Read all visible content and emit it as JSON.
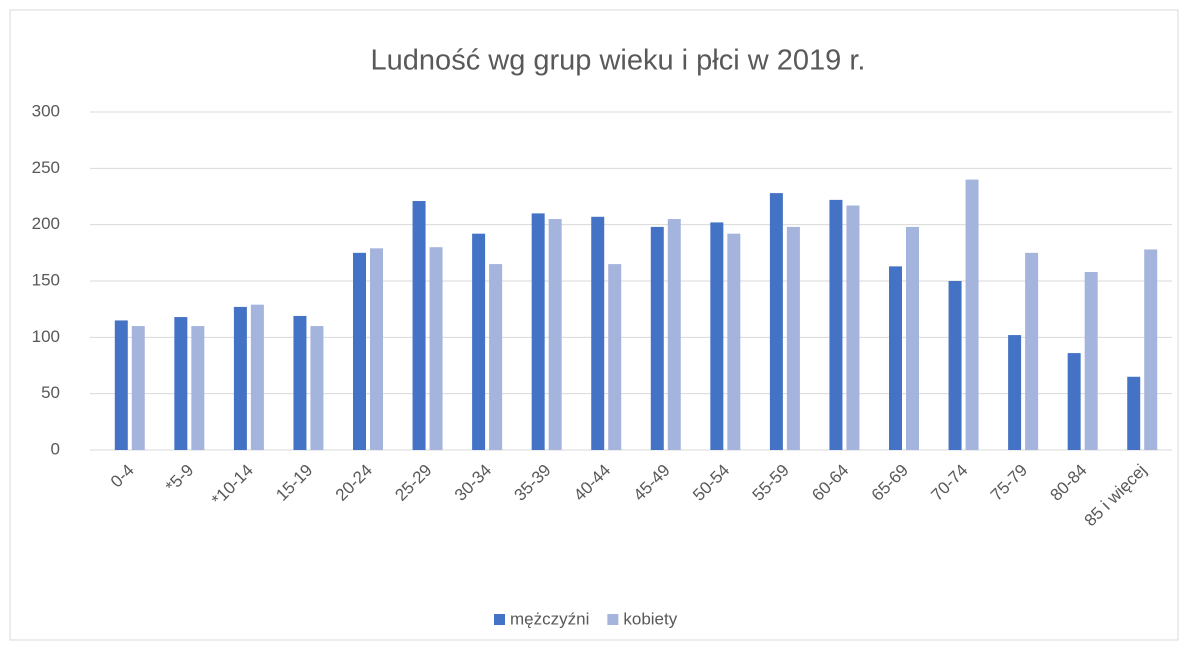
{
  "chart_data": {
    "type": "bar",
    "title": "Ludność wg grup wieku i płci w 2019 r.",
    "categories": [
      "0-4",
      "*5-9",
      "*10-14",
      "15-19",
      "20-24",
      "25-29",
      "30-34",
      "35-39",
      "40-44",
      "45-49",
      "50-54",
      "55-59",
      "60-64",
      "65-69",
      "70-74",
      "75-79",
      "80-84",
      "85 i więcej"
    ],
    "series": [
      {
        "name": "mężczyźni",
        "color": "#4472c4",
        "values": [
          115,
          118,
          127,
          119,
          175,
          221,
          192,
          210,
          207,
          198,
          202,
          228,
          222,
          163,
          150,
          102,
          86,
          65
        ]
      },
      {
        "name": "kobiety",
        "color": "#a5b4dc",
        "values": [
          110,
          110,
          129,
          110,
          179,
          180,
          165,
          205,
          165,
          205,
          192,
          198,
          217,
          198,
          240,
          175,
          158,
          178
        ]
      }
    ],
    "ylim": [
      0,
      300
    ],
    "yticks": [
      0,
      50,
      100,
      150,
      200,
      250,
      300
    ],
    "grid": true,
    "legend": "bottom"
  }
}
